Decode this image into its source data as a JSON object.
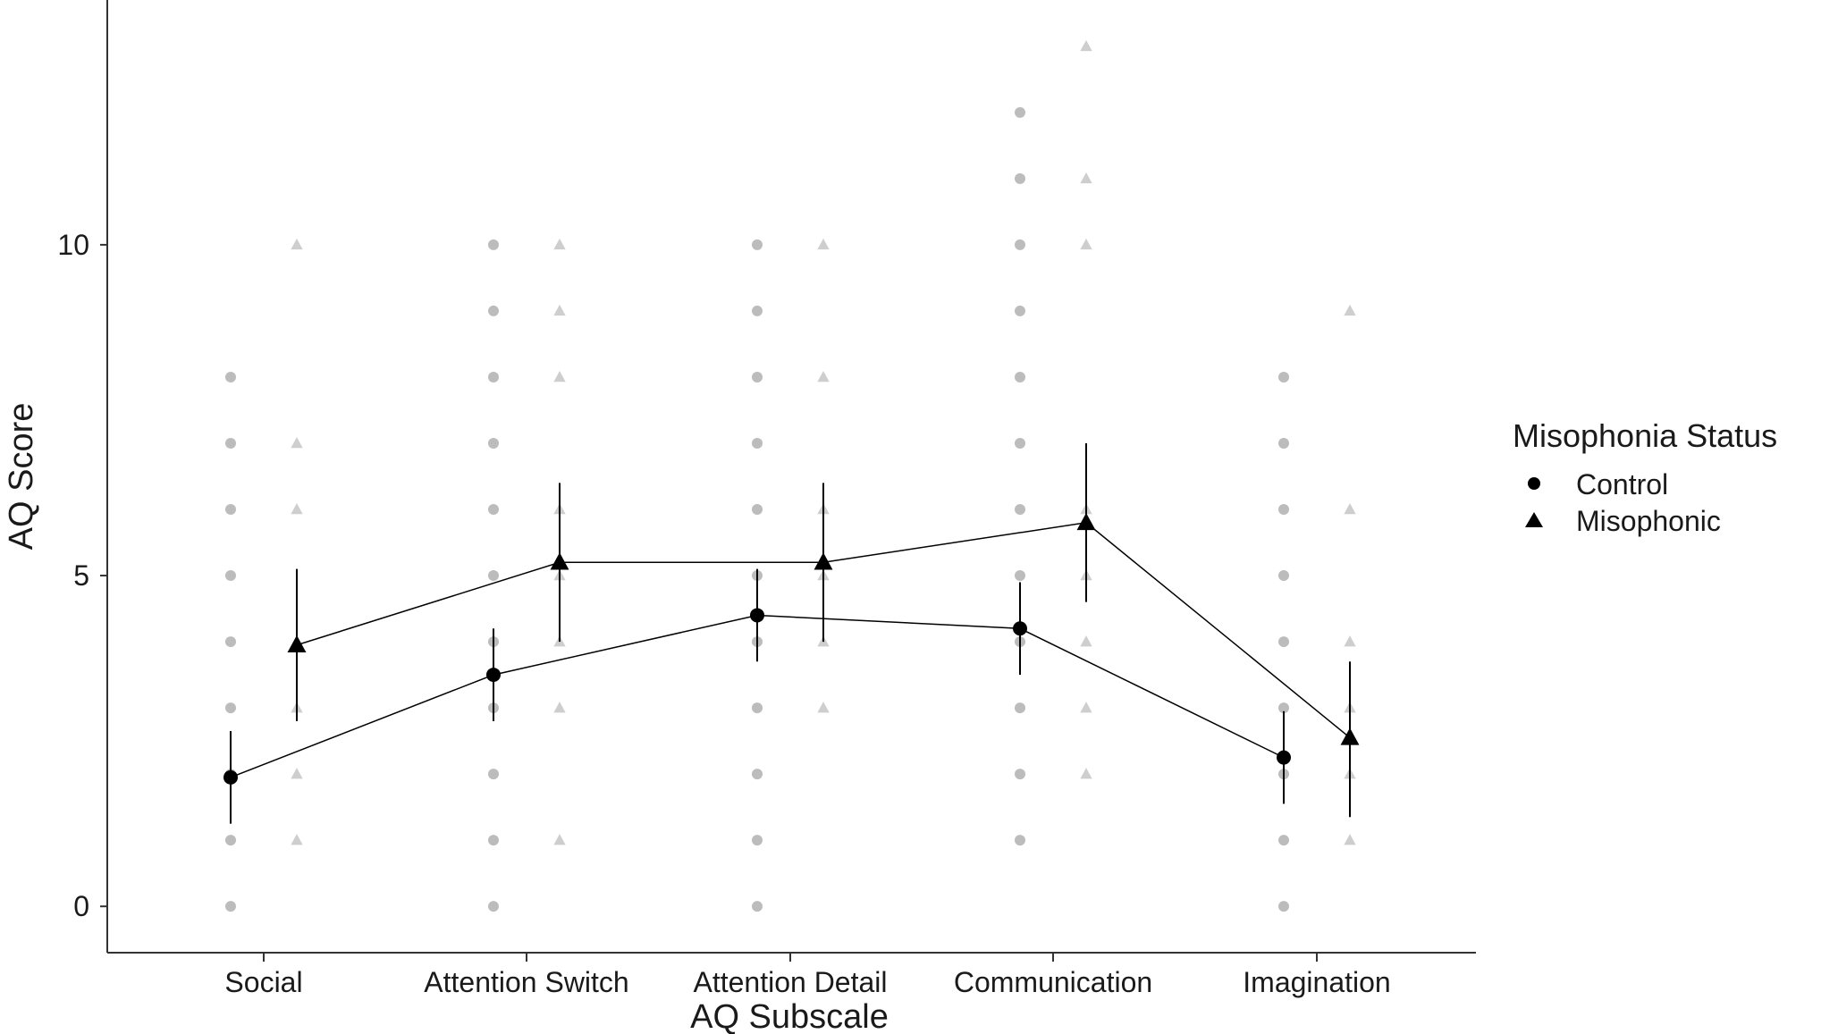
{
  "chart_data": {
    "type": "scatter",
    "title": "",
    "xlabel": "AQ Subscale",
    "ylabel": "AQ Score",
    "categories": [
      "Social",
      "Attention Switch",
      "Attention Detail",
      "Communication",
      "Imagination"
    ],
    "ylim": [
      -0.7,
      13.7
    ],
    "yticks": [
      0,
      5,
      10
    ],
    "grid": false,
    "legend": {
      "title": "Misophonia Status",
      "position": "right",
      "entries": [
        {
          "label": "Control",
          "marker": "circle"
        },
        {
          "label": "Misophonic",
          "marker": "triangle"
        }
      ]
    },
    "series": [
      {
        "name": "Control",
        "marker": "circle",
        "means": [
          1.95,
          3.5,
          4.4,
          4.2,
          2.25
        ],
        "ci_low": [
          1.25,
          2.8,
          3.7,
          3.5,
          1.55
        ],
        "ci_high": [
          2.65,
          4.2,
          5.1,
          4.9,
          2.95
        ],
        "raw_points": [
          [
            0,
            1,
            2,
            3,
            4,
            5,
            6,
            7,
            8
          ],
          [
            0,
            1,
            2,
            3,
            4,
            5,
            6,
            7,
            8,
            9,
            10
          ],
          [
            0,
            1,
            2,
            3,
            4,
            5,
            6,
            7,
            8,
            9,
            10
          ],
          [
            1,
            2,
            3,
            4,
            5,
            6,
            7,
            8,
            9,
            10,
            11,
            12
          ],
          [
            0,
            1,
            2,
            3,
            4,
            5,
            6,
            7,
            8
          ]
        ]
      },
      {
        "name": "Misophonic",
        "marker": "triangle",
        "means": [
          3.95,
          5.2,
          5.2,
          5.8,
          2.55
        ],
        "ci_low": [
          2.8,
          4.0,
          4.0,
          4.6,
          1.35
        ],
        "ci_high": [
          5.1,
          6.4,
          6.4,
          7.0,
          3.7
        ],
        "raw_points": [
          [
            1,
            2,
            3,
            6,
            7,
            10
          ],
          [
            1,
            3,
            4,
            5,
            6,
            8,
            9,
            10
          ],
          [
            3,
            4,
            5,
            6,
            8,
            10
          ],
          [
            2,
            3,
            4,
            5,
            6,
            10,
            11,
            13
          ],
          [
            1,
            2,
            3,
            4,
            6,
            9
          ]
        ]
      }
    ]
  },
  "colors": {
    "mean": "#000000",
    "raw": "#a6a6a6",
    "axis": "#333333"
  }
}
